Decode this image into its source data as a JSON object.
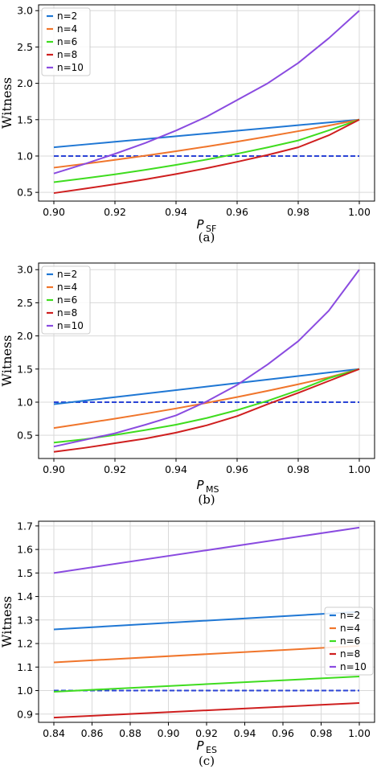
{
  "chart_data": [
    {
      "type": "line",
      "caption": "(a)",
      "xlabel": "P",
      "xlabel_sub": "SF",
      "ylabel": "Witness",
      "xlim": [
        0.895,
        1.005
      ],
      "ylim": [
        0.38,
        3.08
      ],
      "xticks": [
        "0.90",
        "0.92",
        "0.94",
        "0.96",
        "0.98",
        "1.00"
      ],
      "yticks": [
        "0.5",
        "1.0",
        "1.5",
        "2.0",
        "2.5",
        "3.0"
      ],
      "grid": true,
      "legend_position": "top-left",
      "x": [
        0.9,
        0.91,
        0.92,
        0.93,
        0.94,
        0.95,
        0.96,
        0.97,
        0.98,
        0.99,
        1.0
      ],
      "threshold": {
        "value": 1.0,
        "color": "#2b44d6",
        "style": "dashed"
      },
      "series": [
        {
          "name": "n=2",
          "color": "#1f77d4",
          "values": [
            1.12,
            1.158,
            1.196,
            1.234,
            1.272,
            1.31,
            1.348,
            1.386,
            1.424,
            1.462,
            1.5
          ]
        },
        {
          "name": "n=4",
          "color": "#f0752b",
          "values": [
            0.84,
            0.892,
            0.947,
            1.005,
            1.066,
            1.13,
            1.197,
            1.268,
            1.342,
            1.419,
            1.5
          ]
        },
        {
          "name": "n=6",
          "color": "#3fdc1f",
          "values": [
            0.64,
            0.692,
            0.748,
            0.81,
            0.878,
            0.951,
            1.031,
            1.119,
            1.214,
            1.353,
            1.5
          ]
        },
        {
          "name": "n=8",
          "color": "#cf1f1f",
          "values": [
            0.49,
            0.55,
            0.612,
            0.679,
            0.752,
            0.832,
            0.92,
            1.015,
            1.12,
            1.285,
            1.5
          ]
        },
        {
          "name": "n=10",
          "color": "#8a4be0",
          "values": [
            0.76,
            0.89,
            1.03,
            1.18,
            1.35,
            1.54,
            1.77,
            2.0,
            2.28,
            2.62,
            3.0
          ]
        }
      ]
    },
    {
      "type": "line",
      "caption": "(b)",
      "xlabel": "P",
      "xlabel_sub": "MS",
      "ylabel": "Witness",
      "xlim": [
        0.895,
        1.005
      ],
      "ylim": [
        0.15,
        3.1
      ],
      "xticks": [
        "0.90",
        "0.92",
        "0.94",
        "0.96",
        "0.98",
        "1.00"
      ],
      "yticks": [
        "0.5",
        "1.0",
        "1.5",
        "2.0",
        "2.5",
        "3.0"
      ],
      "grid": true,
      "legend_position": "top-left",
      "x": [
        0.9,
        0.91,
        0.92,
        0.93,
        0.94,
        0.95,
        0.96,
        0.97,
        0.98,
        0.99,
        1.0
      ],
      "threshold": {
        "value": 1.0,
        "color": "#2b44d6",
        "style": "dashed"
      },
      "series": [
        {
          "name": "n=2",
          "color": "#1f77d4",
          "values": [
            0.97,
            1.023,
            1.076,
            1.129,
            1.182,
            1.235,
            1.288,
            1.341,
            1.394,
            1.447,
            1.5
          ]
        },
        {
          "name": "n=4",
          "color": "#f0752b",
          "values": [
            0.61,
            0.68,
            0.751,
            0.826,
            0.905,
            0.989,
            1.077,
            1.171,
            1.27,
            1.375,
            1.5
          ]
        },
        {
          "name": "n=6",
          "color": "#3fdc1f",
          "values": [
            0.39,
            0.44,
            0.505,
            0.58,
            0.66,
            0.76,
            0.88,
            1.02,
            1.18,
            1.36,
            1.5
          ]
        },
        {
          "name": "n=8",
          "color": "#cf1f1f",
          "values": [
            0.25,
            0.31,
            0.38,
            0.45,
            0.54,
            0.65,
            0.79,
            0.97,
            1.14,
            1.32,
            1.5
          ]
        },
        {
          "name": "n=10",
          "color": "#8a4be0",
          "values": [
            0.33,
            0.43,
            0.53,
            0.66,
            0.8,
            1.01,
            1.26,
            1.57,
            1.92,
            2.38,
            3.0
          ]
        }
      ]
    },
    {
      "type": "line",
      "caption": "(c)",
      "xlabel": "P",
      "xlabel_sub": "ES",
      "ylabel": "Witness",
      "xlim": [
        0.832,
        1.008
      ],
      "ylim": [
        0.865,
        1.72
      ],
      "xticks": [
        "0.84",
        "0.86",
        "0.88",
        "0.90",
        "0.92",
        "0.94",
        "0.96",
        "0.98",
        "1.00"
      ],
      "yticks": [
        "0.9",
        "1.0",
        "1.1",
        "1.2",
        "1.3",
        "1.4",
        "1.5",
        "1.6",
        "1.7"
      ],
      "grid": true,
      "legend_position": "right",
      "x": [
        0.84,
        1.0
      ],
      "threshold": {
        "value": 1.0,
        "color": "#2b44d6",
        "style": "dashed"
      },
      "series": [
        {
          "name": "n=2",
          "color": "#1f77d4",
          "values": [
            1.26,
            1.335
          ]
        },
        {
          "name": "n=4",
          "color": "#f0752b",
          "values": [
            1.12,
            1.19
          ]
        },
        {
          "name": "n=6",
          "color": "#3fdc1f",
          "values": [
            0.995,
            1.06
          ]
        },
        {
          "name": "n=8",
          "color": "#cf1f1f",
          "values": [
            0.885,
            0.947
          ]
        },
        {
          "name": "n=10",
          "color": "#8a4be0",
          "values": [
            1.5,
            1.693
          ]
        }
      ]
    }
  ]
}
